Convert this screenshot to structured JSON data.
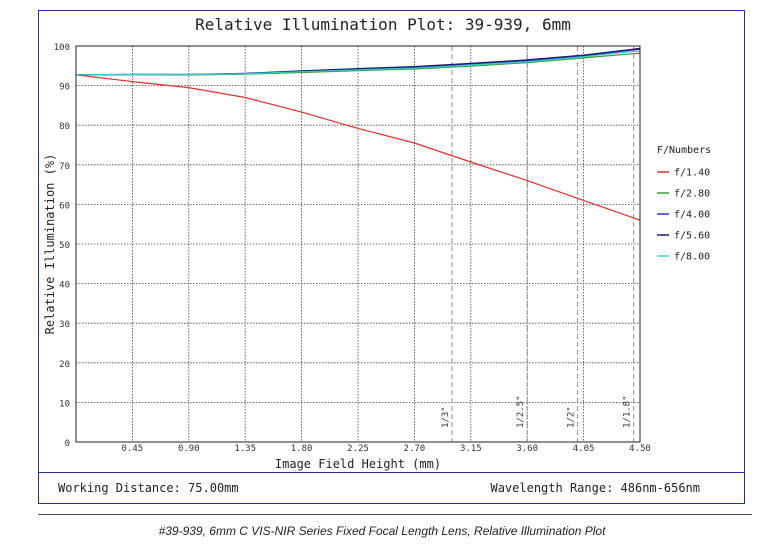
{
  "chart_data": {
    "type": "line",
    "title": "Relative Illumination Plot: 39-939, 6mm",
    "xlabel": "Image Field Height (mm)",
    "ylabel": "Relative Illumination (%)",
    "xlim": [
      0,
      4.5
    ],
    "ylim": [
      0,
      100
    ],
    "x_ticks": [
      "0.45",
      "0.90",
      "1.35",
      "1.80",
      "2.25",
      "2.70",
      "3.15",
      "3.60",
      "4.05",
      "4.50"
    ],
    "y_ticks": [
      "0",
      "10",
      "20",
      "30",
      "40",
      "50",
      "60",
      "70",
      "80",
      "90",
      "100"
    ],
    "grid": true,
    "legend_title": "F/Numbers",
    "legend_position": "right",
    "series": [
      {
        "name": "f/1.40",
        "color": "#e03030",
        "x": [
          0,
          0.45,
          0.9,
          1.35,
          1.8,
          2.25,
          2.7,
          3.15,
          3.6,
          4.05,
          4.5
        ],
        "y": [
          92.7,
          91.0,
          89.5,
          87.0,
          83.3,
          79.2,
          75.5,
          70.7,
          66.0,
          61.0,
          56.0
        ]
      },
      {
        "name": "f/2.80",
        "color": "#33a033",
        "x": [
          0,
          0.45,
          0.9,
          1.35,
          1.8,
          2.25,
          2.7,
          3.15,
          3.6,
          4.05,
          4.5
        ],
        "y": [
          92.7,
          92.8,
          92.7,
          92.9,
          93.3,
          93.8,
          94.2,
          94.9,
          95.8,
          97.0,
          98.2
        ]
      },
      {
        "name": "f/4.00",
        "color": "#3030d0",
        "x": [
          0,
          0.45,
          0.9,
          1.35,
          1.8,
          2.25,
          2.7,
          3.15,
          3.6,
          4.05,
          4.5
        ],
        "y": [
          92.7,
          92.8,
          92.8,
          93.0,
          93.6,
          94.2,
          94.6,
          95.4,
          96.3,
          97.5,
          99.2
        ]
      },
      {
        "name": "f/5.60",
        "color": "#1a1a70",
        "x": [
          0,
          0.45,
          0.9,
          1.35,
          1.8,
          2.25,
          2.7,
          3.15,
          3.6,
          4.05,
          4.5
        ],
        "y": [
          92.7,
          92.8,
          92.8,
          93.1,
          93.7,
          94.3,
          94.8,
          95.6,
          96.5,
          97.7,
          99.4
        ]
      },
      {
        "name": "f/8.00",
        "color": "#30d0d0",
        "x": [
          0,
          0.45,
          0.9,
          1.35,
          1.8,
          2.25,
          2.7,
          3.15,
          3.6,
          4.05,
          4.5
        ],
        "y": [
          92.7,
          92.8,
          92.8,
          93.0,
          93.5,
          94.0,
          94.4,
          95.2,
          96.0,
          97.3,
          98.8
        ]
      }
    ],
    "sensor_markers": [
      {
        "label": "1/3\"",
        "x": 3.0
      },
      {
        "label": "1/2.5\"",
        "x": 3.6
      },
      {
        "label": "1/2\"",
        "x": 4.0
      },
      {
        "label": "1/1.8\"",
        "x": 4.45
      }
    ]
  },
  "footer": {
    "working_distance": "Working Distance: 75.00mm",
    "wavelength_range": "Wavelength Range: 486nm-656nm"
  },
  "caption": "#39-939, 6mm C VIS-NIR Series Fixed Focal Length Lens, Relative Illumination Plot"
}
